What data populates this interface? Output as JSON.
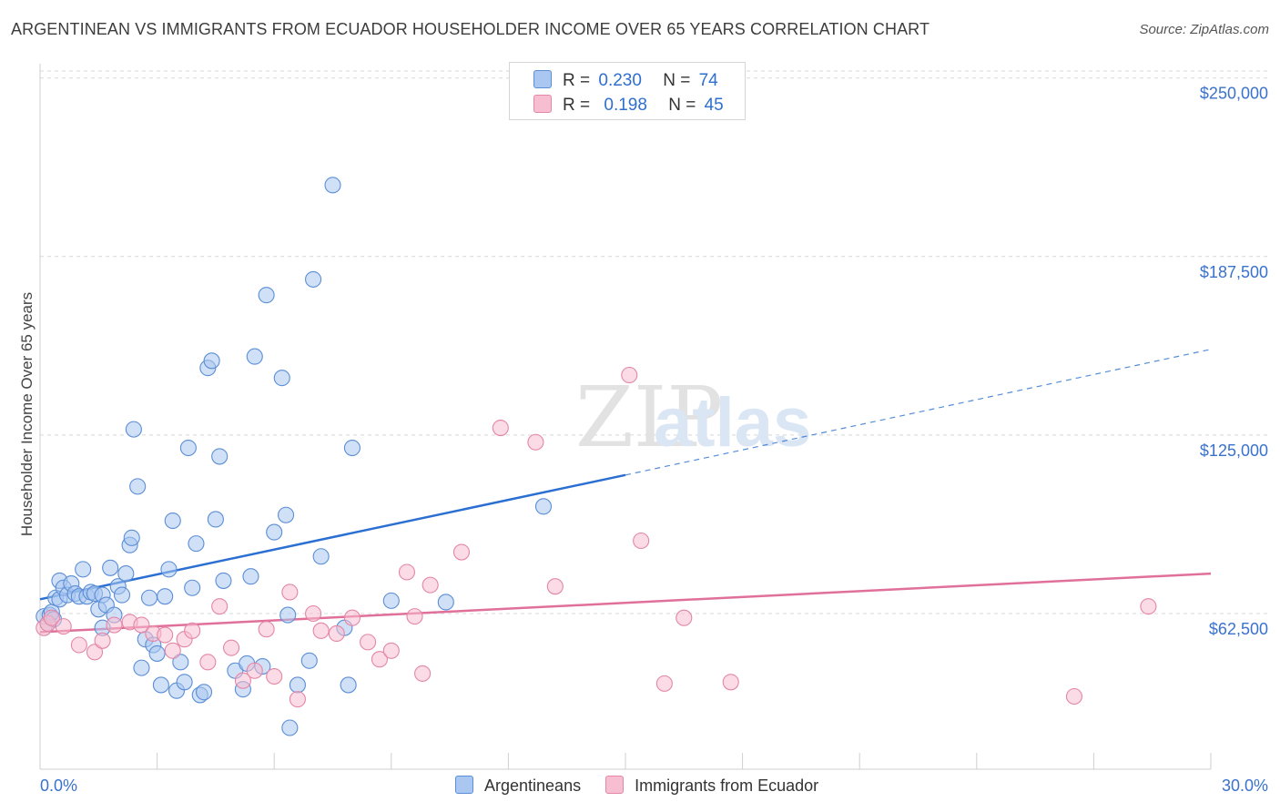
{
  "title": "ARGENTINEAN VS IMMIGRANTS FROM ECUADOR HOUSEHOLDER INCOME OVER 65 YEARS CORRELATION CHART",
  "source": "Source: ZipAtlas.com",
  "watermark": {
    "zip": "ZIP",
    "atlas": "atlas"
  },
  "legend_top": [
    {
      "r_label": "R =",
      "r_value": "0.230",
      "n_label": "N =",
      "n_value": "74"
    },
    {
      "r_label": "R =",
      "r_value": "0.198",
      "n_label": "N =",
      "n_value": "45"
    }
  ],
  "legend_bottom": [
    "Argentineans",
    "Immigrants from Ecuador"
  ],
  "colors": {
    "blue_fill": "#a9c7f0",
    "blue_stroke": "#5b8ed6",
    "blue_line": "#2a6fd1",
    "pink_fill": "#f7bdd0",
    "pink_stroke": "#e486a6",
    "pink_line": "#e0709a",
    "tick_label": "#3a72cc",
    "grid": "#d8d8d8"
  },
  "chart_data": {
    "type": "scatter",
    "title": "ARGENTINEAN VS IMMIGRANTS FROM ECUADOR HOUSEHOLDER INCOME OVER 65 YEARS CORRELATION CHART",
    "xlabel": "",
    "ylabel": "Householder Income Over 65 years",
    "xlim": [
      0,
      30
    ],
    "ylim": [
      8000,
      255000
    ],
    "x_tick_labels": [
      "0.0%",
      "30.0%"
    ],
    "y_ticks": [
      62500,
      125000,
      187500,
      250000
    ],
    "y_tick_labels": [
      "$62,500",
      "$125,000",
      "$187,500",
      "$250,000"
    ],
    "grid": true,
    "legend_position": "top-center",
    "series": [
      {
        "name": "Argentineans",
        "r": 0.23,
        "n": 74,
        "trend": {
          "x0": 0,
          "y0": 67500,
          "x1": 15,
          "y1": 111000,
          "dashed_to_x": 30,
          "dashed_to_y": 155000
        },
        "points": [
          [
            0.1,
            61500
          ],
          [
            0.2,
            59000
          ],
          [
            0.25,
            62000
          ],
          [
            0.3,
            63000
          ],
          [
            0.35,
            60500
          ],
          [
            0.4,
            68000
          ],
          [
            0.5,
            67500
          ],
          [
            0.5,
            74000
          ],
          [
            0.6,
            71500
          ],
          [
            0.7,
            69000
          ],
          [
            0.8,
            73000
          ],
          [
            0.9,
            69500
          ],
          [
            1.0,
            68500
          ],
          [
            1.1,
            78000
          ],
          [
            1.2,
            68500
          ],
          [
            1.3,
            70000
          ],
          [
            1.4,
            69500
          ],
          [
            1.5,
            64000
          ],
          [
            1.6,
            57500
          ],
          [
            1.6,
            69000
          ],
          [
            1.7,
            65500
          ],
          [
            1.8,
            78500
          ],
          [
            1.9,
            62000
          ],
          [
            2.0,
            72000
          ],
          [
            2.1,
            69000
          ],
          [
            2.2,
            76500
          ],
          [
            2.3,
            86500
          ],
          [
            2.35,
            89000
          ],
          [
            2.4,
            127000
          ],
          [
            2.5,
            107000
          ],
          [
            2.6,
            43500
          ],
          [
            2.7,
            53500
          ],
          [
            2.8,
            68000
          ],
          [
            2.9,
            51500
          ],
          [
            3.0,
            48500
          ],
          [
            3.1,
            37500
          ],
          [
            3.2,
            68500
          ],
          [
            3.3,
            78000
          ],
          [
            3.4,
            95000
          ],
          [
            3.5,
            35500
          ],
          [
            3.6,
            45500
          ],
          [
            3.7,
            38500
          ],
          [
            3.8,
            120500
          ],
          [
            3.9,
            71500
          ],
          [
            4.0,
            87000
          ],
          [
            4.1,
            34000
          ],
          [
            4.2,
            35000
          ],
          [
            4.3,
            148500
          ],
          [
            4.4,
            151000
          ],
          [
            4.5,
            95500
          ],
          [
            4.6,
            117500
          ],
          [
            4.7,
            74000
          ],
          [
            5.0,
            42500
          ],
          [
            5.2,
            36000
          ],
          [
            5.3,
            45000
          ],
          [
            5.4,
            75500
          ],
          [
            5.5,
            152500
          ],
          [
            5.7,
            44000
          ],
          [
            5.8,
            174000
          ],
          [
            6.0,
            91000
          ],
          [
            6.2,
            145000
          ],
          [
            6.3,
            97000
          ],
          [
            6.35,
            62000
          ],
          [
            6.4,
            22500
          ],
          [
            6.6,
            37500
          ],
          [
            6.9,
            46000
          ],
          [
            7.0,
            179500
          ],
          [
            7.2,
            82500
          ],
          [
            7.5,
            212500
          ],
          [
            7.8,
            57500
          ],
          [
            7.9,
            37500
          ],
          [
            8.0,
            120500
          ],
          [
            9.0,
            67000
          ],
          [
            10.4,
            66500
          ],
          [
            12.9,
            100000
          ]
        ]
      },
      {
        "name": "Immigrants from Ecuador",
        "r": 0.198,
        "n": 45,
        "trend": {
          "x0": 0,
          "y0": 56000,
          "x1": 30,
          "y1": 76500
        },
        "points": [
          [
            0.1,
            57500
          ],
          [
            0.2,
            59000
          ],
          [
            0.3,
            61000
          ],
          [
            0.6,
            58000
          ],
          [
            1.0,
            51500
          ],
          [
            1.4,
            49000
          ],
          [
            1.6,
            53000
          ],
          [
            1.9,
            58500
          ],
          [
            2.3,
            59500
          ],
          [
            2.6,
            58500
          ],
          [
            2.9,
            55500
          ],
          [
            3.2,
            55000
          ],
          [
            3.4,
            49500
          ],
          [
            3.7,
            53500
          ],
          [
            3.9,
            56500
          ],
          [
            4.3,
            45500
          ],
          [
            4.6,
            65000
          ],
          [
            4.9,
            50500
          ],
          [
            5.2,
            39000
          ],
          [
            5.5,
            42500
          ],
          [
            5.8,
            57000
          ],
          [
            6.0,
            40500
          ],
          [
            6.4,
            70000
          ],
          [
            6.6,
            32500
          ],
          [
            7.0,
            62500
          ],
          [
            7.2,
            56500
          ],
          [
            7.6,
            55500
          ],
          [
            8.0,
            61000
          ],
          [
            8.4,
            52500
          ],
          [
            8.7,
            46500
          ],
          [
            9.0,
            49500
          ],
          [
            9.4,
            77000
          ],
          [
            9.6,
            61500
          ],
          [
            9.8,
            41500
          ],
          [
            10.0,
            72500
          ],
          [
            10.8,
            84000
          ],
          [
            11.8,
            127500
          ],
          [
            12.7,
            122500
          ],
          [
            13.2,
            72000
          ],
          [
            15.1,
            146000
          ],
          [
            15.4,
            88000
          ],
          [
            16.0,
            38000
          ],
          [
            16.5,
            61000
          ],
          [
            17.7,
            38500
          ],
          [
            26.5,
            33500
          ],
          [
            28.4,
            65000
          ]
        ]
      }
    ]
  }
}
